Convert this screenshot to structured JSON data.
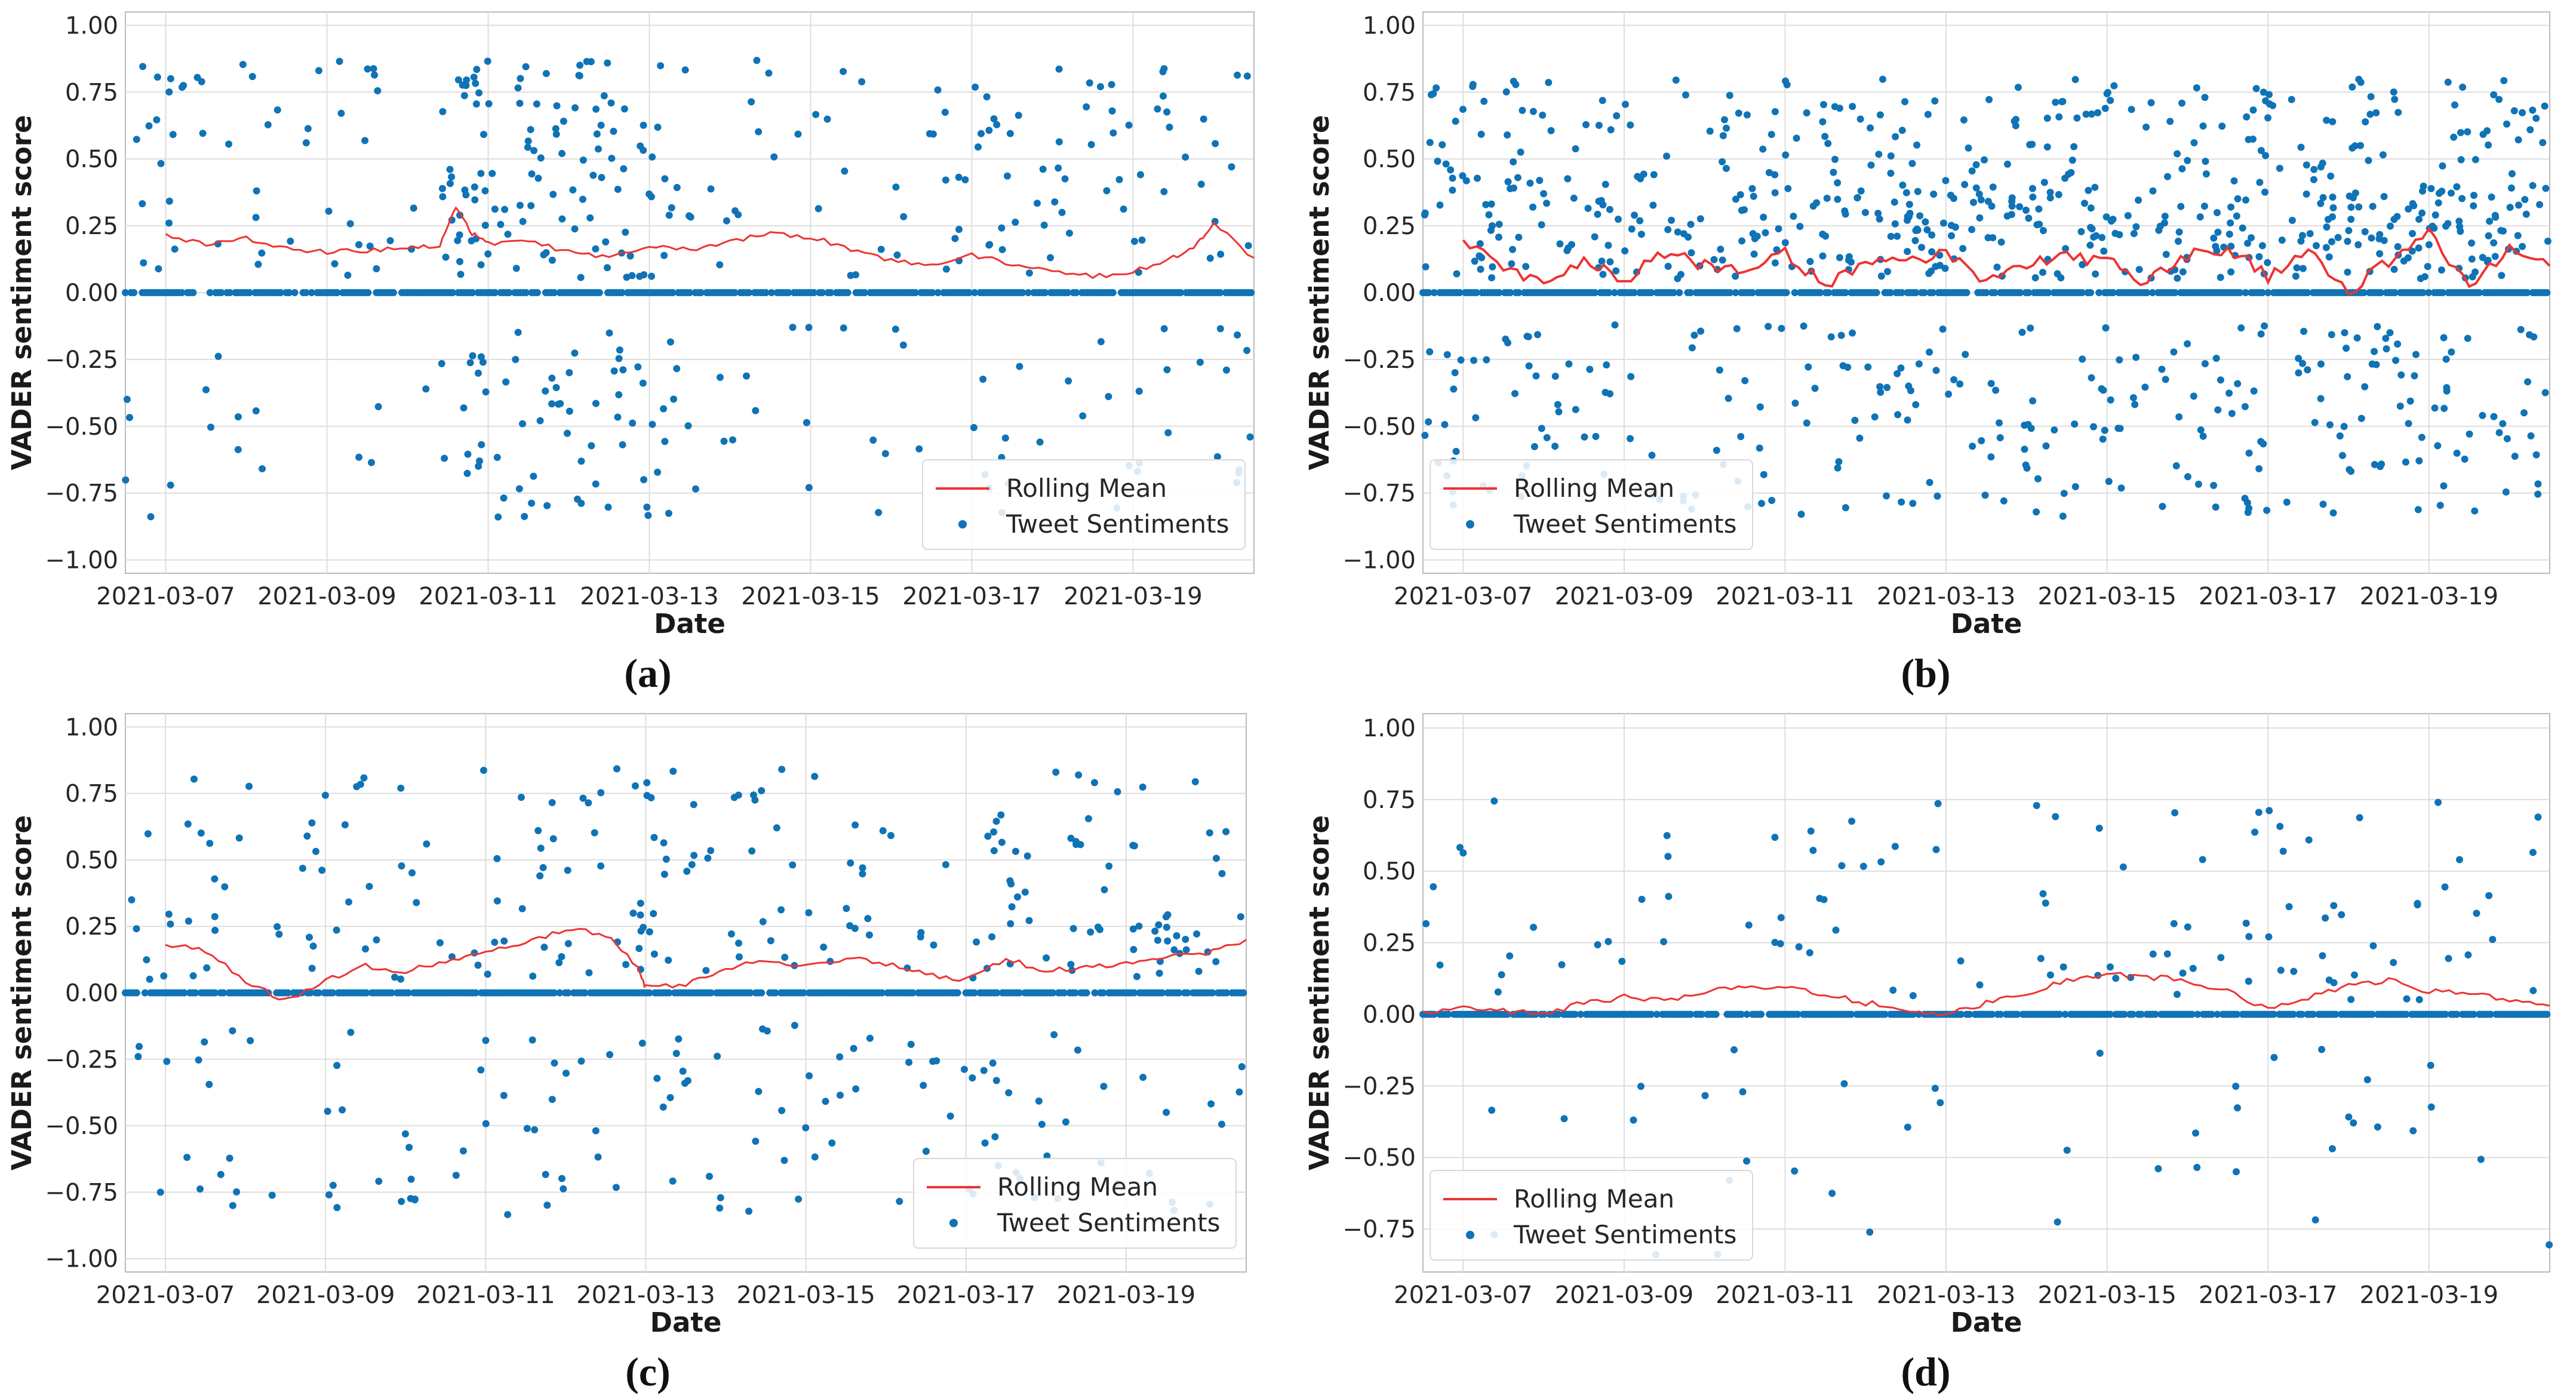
{
  "figure": {
    "colors": {
      "scatter": "#0f73b6",
      "rolling_mean": "#ee3333",
      "grid": "#dddddd",
      "axis": "#bbbbbb"
    },
    "common": {
      "xlabel": "Date",
      "ylabel": "VADER sentiment score",
      "x_ticks": [
        "2021-03-07",
        "2021-03-09",
        "2021-03-11",
        "2021-03-13",
        "2021-03-15",
        "2021-03-17",
        "2021-03-19"
      ],
      "y_ticks": [
        "1.00",
        "0.75",
        "0.50",
        "0.25",
        "0.00",
        "−0.25",
        "−0.50",
        "−0.75",
        "−1.00"
      ],
      "legend_rolling": "Rolling Mean",
      "legend_scatter": "Tweet Sentiments"
    }
  },
  "chart_data": [
    {
      "type": "scatter",
      "panel_label": "(a)",
      "title": "",
      "xlabel": "Date",
      "ylabel": "VADER sentiment score",
      "x_range_days": [
        -0.5,
        13.5
      ],
      "ylim": [
        -1.05,
        1.05
      ],
      "legend_position": "lower-right",
      "series": [
        {
          "name": "Rolling Mean",
          "kind": "line",
          "x": [
            0,
            0.5,
            1,
            1.5,
            2,
            2.5,
            3,
            3.4,
            3.6,
            3.8,
            4,
            4.5,
            5,
            5.5,
            6,
            6.5,
            7,
            7.5,
            8,
            8.5,
            9,
            9.5,
            10,
            10.5,
            11,
            11.5,
            12,
            12.5,
            12.8,
            13,
            13.5
          ],
          "y": [
            0.21,
            0.18,
            0.2,
            0.17,
            0.15,
            0.16,
            0.17,
            0.18,
            0.32,
            0.22,
            0.18,
            0.2,
            0.15,
            0.13,
            0.17,
            0.16,
            0.19,
            0.22,
            0.21,
            0.16,
            0.12,
            0.1,
            0.14,
            0.11,
            0.08,
            0.06,
            0.08,
            0.13,
            0.18,
            0.26,
            0.13
          ]
        },
        {
          "name": "Tweet Sentiments",
          "kind": "scatter",
          "density": [
            1.0,
            0.6,
            0.5,
            0.7,
            2.6,
            2.4,
            2.0,
            0.6,
            0.5,
            0.5,
            1.2,
            0.8,
            1.1,
            0.8
          ],
          "center": 0.4,
          "spread": 0.42
        }
      ]
    },
    {
      "type": "scatter",
      "panel_label": "(b)",
      "title": "",
      "xlabel": "Date",
      "ylabel": "VADER sentiment score",
      "x_range_days": [
        -0.5,
        13.5
      ],
      "ylim": [
        -1.05,
        1.05
      ],
      "legend_position": "lower-left",
      "series": [
        {
          "name": "Rolling Mean",
          "kind": "line",
          "x": [
            0,
            0.5,
            1,
            1.5,
            2,
            2.5,
            3,
            3.5,
            4,
            4.5,
            5,
            5.5,
            6,
            6.5,
            7,
            7.5,
            8,
            8.5,
            9,
            9.5,
            10,
            10.5,
            11,
            11.5,
            12,
            12.5,
            13,
            13.5
          ],
          "y": [
            0.2,
            0.1,
            0.03,
            0.13,
            0.05,
            0.15,
            0.1,
            0.09,
            0.15,
            0.03,
            0.12,
            0.11,
            0.14,
            0.04,
            0.1,
            0.13,
            0.12,
            0.04,
            0.14,
            0.17,
            0.06,
            0.15,
            0.0,
            0.12,
            0.22,
            0.01,
            0.16,
            0.1
          ]
        },
        {
          "name": "Tweet Sentiments",
          "kind": "scatter",
          "density": [
            2.2,
            2.0,
            1.8,
            1.8,
            2.0,
            2.4,
            2.6,
            2.6,
            2.4,
            2.2,
            2.6,
            3.0,
            3.0,
            2.6
          ],
          "center": 0.2,
          "spread": 0.55
        }
      ]
    },
    {
      "type": "scatter",
      "panel_label": "(c)",
      "title": "",
      "xlabel": "Date",
      "ylabel": "VADER sentiment score",
      "x_range_days": [
        -0.5,
        13.5
      ],
      "ylim": [
        -1.05,
        1.05
      ],
      "legend_position": "lower-right",
      "series": [
        {
          "name": "Rolling Mean",
          "kind": "line",
          "x": [
            0,
            0.5,
            1,
            1.5,
            2,
            2.5,
            3,
            3.5,
            4,
            4.5,
            5,
            5.5,
            5.9,
            6,
            6.5,
            7,
            7.5,
            8,
            8.5,
            9,
            9.5,
            10,
            10.5,
            11,
            11.5,
            12,
            12.5,
            13,
            13.5
          ],
          "y": [
            0.18,
            0.16,
            0.04,
            -0.03,
            0.05,
            0.1,
            0.08,
            0.12,
            0.15,
            0.19,
            0.24,
            0.22,
            0.1,
            0.02,
            0.03,
            0.09,
            0.12,
            0.1,
            0.13,
            0.11,
            0.07,
            0.05,
            0.13,
            0.08,
            0.1,
            0.11,
            0.14,
            0.15,
            0.2
          ]
        },
        {
          "name": "Tweet Sentiments",
          "kind": "scatter",
          "density": [
            0.8,
            0.7,
            0.9,
            0.7,
            0.7,
            1.2,
            1.3,
            1.0,
            0.9,
            0.8,
            1.0,
            1.2,
            1.0,
            1.0
          ],
          "center": 0.3,
          "spread": 0.5
        }
      ]
    },
    {
      "type": "scatter",
      "panel_label": "(d)",
      "title": "",
      "xlabel": "Date",
      "ylabel": "VADER sentiment score",
      "x_range_days": [
        -0.5,
        13.5
      ],
      "ylim": [
        -0.9,
        1.05
      ],
      "legend_position": "lower-left",
      "series": [
        {
          "name": "Rolling Mean",
          "kind": "line",
          "x": [
            -0.5,
            0,
            0.5,
            1,
            1.5,
            2,
            2.5,
            3,
            3.5,
            4,
            4.5,
            5,
            5.5,
            6,
            6.5,
            7,
            7.5,
            8,
            8.5,
            9,
            9.5,
            10,
            10.5,
            11,
            11.5,
            12,
            12.5,
            13,
            13.5
          ],
          "y": [
            0.0,
            0.03,
            0.01,
            0.0,
            0.04,
            0.06,
            0.05,
            0.08,
            0.1,
            0.09,
            0.07,
            0.04,
            0.02,
            0.0,
            0.04,
            0.07,
            0.12,
            0.14,
            0.13,
            0.12,
            0.08,
            0.02,
            0.06,
            0.1,
            0.12,
            0.08,
            0.07,
            0.05,
            0.03
          ]
        },
        {
          "name": "Tweet Sentiments",
          "kind": "scatter",
          "density": [
            0.4,
            0.2,
            0.3,
            0.3,
            0.5,
            0.4,
            0.3,
            0.3,
            0.3,
            0.5,
            0.6,
            0.7,
            0.5,
            0.3
          ],
          "center": 0.2,
          "spread": 0.5
        }
      ]
    }
  ]
}
